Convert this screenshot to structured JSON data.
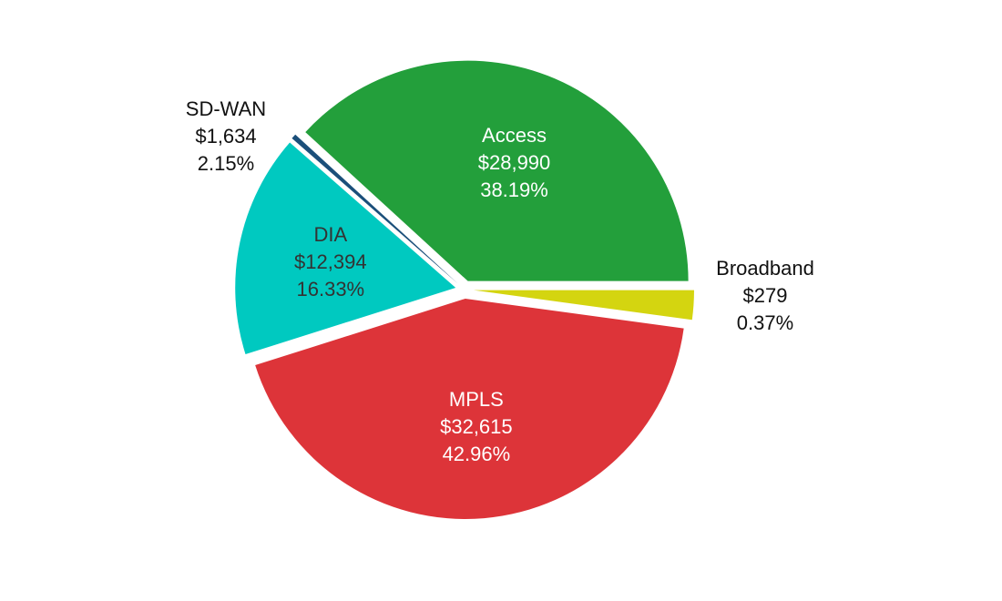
{
  "chart_data": {
    "type": "pie",
    "title": "",
    "legend": "none",
    "slices": [
      {
        "name": "Access",
        "value": 28990,
        "value_label": "$28,990",
        "percent_label": "38.19%",
        "color": "#239f3b",
        "label_color": "#ffffff",
        "label_placement": "inside"
      },
      {
        "name": "Broadband",
        "value": 279,
        "value_label": "$279",
        "percent_label": "0.37%",
        "color": "#1b4f7a",
        "label_color": "#111111",
        "label_placement": "outside"
      },
      {
        "name": "DIA",
        "value": 12394,
        "value_label": "$12,394",
        "percent_label": "16.33%",
        "color": "#00c9c0",
        "label_color": "#333333",
        "label_placement": "inside"
      },
      {
        "name": "MPLS",
        "value": 32615,
        "value_label": "$32,615",
        "percent_label": "42.96%",
        "color": "#dd3439",
        "label_color": "#ffffff",
        "label_placement": "inside"
      },
      {
        "name": "SD-WAN",
        "value": 1634,
        "value_label": "$1,634",
        "percent_label": "2.15%",
        "color": "#d4d510",
        "label_color": "#111111",
        "label_placement": "outside"
      }
    ]
  }
}
